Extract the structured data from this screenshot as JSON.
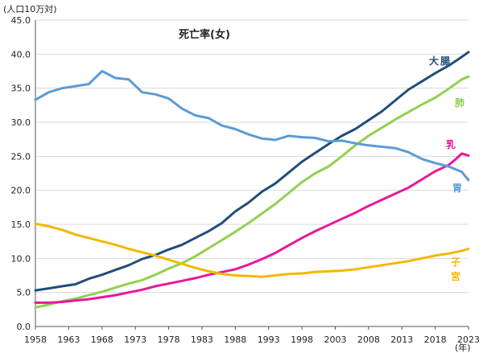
{
  "chart_data": {
    "type": "line",
    "title": "死亡率(女)",
    "ylabel": "(人口10万対)",
    "xlabel": "(年)",
    "ylim": [
      0,
      45
    ],
    "yticks": [
      "0.0",
      "5.0",
      "10.0",
      "15.0",
      "20.0",
      "25.0",
      "30.0",
      "35.0",
      "40.0",
      "45.0"
    ],
    "xlim": [
      1958,
      2023
    ],
    "xticks": [
      "1958",
      "1963",
      "1968",
      "1973",
      "1978",
      "1983",
      "1988",
      "1993",
      "1998",
      "2003",
      "2008",
      "2013",
      "2018",
      "2023"
    ],
    "grid": true,
    "series": [
      {
        "name": "大腸",
        "color": "#1f4e79",
        "label": [
          "大",
          "腸"
        ],
        "x": [
          1958,
          1960,
          1962,
          1964,
          1966,
          1968,
          1970,
          1972,
          1974,
          1976,
          1978,
          1980,
          1982,
          1984,
          1986,
          1988,
          1990,
          1992,
          1994,
          1996,
          1998,
          2000,
          2002,
          2004,
          2006,
          2008,
          2010,
          2012,
          2014,
          2016,
          2018,
          2020,
          2022,
          2023
        ],
        "values": [
          5.3,
          5.6,
          5.9,
          6.2,
          7.0,
          7.6,
          8.3,
          9.0,
          9.9,
          10.5,
          11.3,
          12.0,
          13.0,
          14.0,
          15.2,
          16.9,
          18.2,
          19.8,
          21.0,
          22.6,
          24.2,
          25.5,
          26.8,
          28.0,
          29.0,
          30.3,
          31.6,
          33.2,
          34.8,
          36.0,
          37.2,
          38.3,
          39.6,
          40.3
        ]
      },
      {
        "name": "肺",
        "color": "#92d050",
        "label": [
          "肺"
        ],
        "x": [
          1958,
          1960,
          1962,
          1964,
          1966,
          1968,
          1970,
          1972,
          1974,
          1976,
          1978,
          1980,
          1982,
          1984,
          1986,
          1988,
          1990,
          1992,
          1994,
          1996,
          1998,
          2000,
          2002,
          2004,
          2006,
          2008,
          2010,
          2012,
          2014,
          2016,
          2018,
          2020,
          2022,
          2023
        ],
        "values": [
          2.8,
          3.2,
          3.7,
          4.1,
          4.6,
          5.1,
          5.7,
          6.3,
          6.8,
          7.6,
          8.5,
          9.3,
          10.3,
          11.5,
          12.7,
          13.9,
          15.2,
          16.6,
          18.0,
          19.6,
          21.2,
          22.5,
          23.5,
          25.0,
          26.6,
          28.0,
          29.2,
          30.4,
          31.5,
          32.6,
          33.6,
          34.9,
          36.3,
          36.7
        ]
      },
      {
        "name": "乳",
        "color": "#e6199b",
        "label": [
          "乳"
        ],
        "x": [
          1958,
          1960,
          1962,
          1964,
          1966,
          1968,
          1970,
          1972,
          1974,
          1976,
          1978,
          1980,
          1982,
          1984,
          1986,
          1988,
          1990,
          1992,
          1994,
          1996,
          1998,
          2000,
          2002,
          2004,
          2006,
          2008,
          2010,
          2012,
          2014,
          2016,
          2018,
          2020,
          2021,
          2022,
          2023
        ],
        "values": [
          3.5,
          3.5,
          3.6,
          3.8,
          4.0,
          4.3,
          4.6,
          5.0,
          5.4,
          5.9,
          6.3,
          6.7,
          7.1,
          7.6,
          8.0,
          8.4,
          9.1,
          9.9,
          10.8,
          11.9,
          13.0,
          14.0,
          14.9,
          15.8,
          16.7,
          17.7,
          18.6,
          19.5,
          20.4,
          21.6,
          22.8,
          23.7,
          24.5,
          25.4,
          25.1
        ]
      },
      {
        "name": "胃",
        "color": "#5b9bd5",
        "label": [
          "胃"
        ],
        "x": [
          1958,
          1960,
          1962,
          1964,
          1966,
          1968,
          1970,
          1972,
          1974,
          1976,
          1978,
          1980,
          1982,
          1984,
          1986,
          1988,
          1990,
          1992,
          1994,
          1996,
          1998,
          2000,
          2002,
          2004,
          2006,
          2008,
          2010,
          2012,
          2014,
          2016,
          2018,
          2020,
          2022,
          2023
        ],
        "values": [
          33.3,
          34.4,
          35.0,
          35.3,
          35.6,
          37.5,
          36.5,
          36.3,
          34.4,
          34.1,
          33.5,
          32.0,
          31.0,
          30.6,
          29.5,
          29.0,
          28.2,
          27.6,
          27.4,
          28.0,
          27.8,
          27.7,
          27.2,
          27.3,
          26.9,
          26.6,
          26.4,
          26.2,
          25.6,
          24.6,
          24.0,
          23.5,
          22.7,
          21.5
        ]
      },
      {
        "name": "子宮",
        "color": "#f5b700",
        "label": [
          "子",
          "宮"
        ],
        "x": [
          1958,
          1960,
          1962,
          1964,
          1966,
          1968,
          1970,
          1972,
          1974,
          1976,
          1978,
          1980,
          1982,
          1984,
          1986,
          1988,
          1990,
          1992,
          1994,
          1996,
          1998,
          2000,
          2002,
          2004,
          2006,
          2008,
          2010,
          2012,
          2014,
          2016,
          2018,
          2020,
          2022,
          2023
        ],
        "values": [
          15.1,
          14.7,
          14.2,
          13.5,
          13.0,
          12.5,
          12.0,
          11.4,
          10.9,
          10.4,
          9.8,
          9.2,
          8.6,
          8.1,
          7.7,
          7.5,
          7.4,
          7.3,
          7.5,
          7.7,
          7.8,
          8.0,
          8.1,
          8.2,
          8.4,
          8.7,
          9.0,
          9.3,
          9.6,
          10.0,
          10.4,
          10.7,
          11.1,
          11.4
        ]
      }
    ]
  }
}
